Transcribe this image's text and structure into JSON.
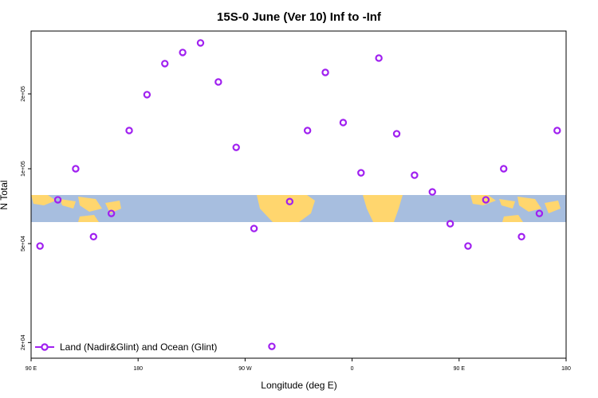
{
  "chart_data": {
    "type": "scatter",
    "title": "15S-0 June (Ver 10)   Inf to -Inf",
    "x_label": "Longitude (deg E)",
    "y_label": "N Total",
    "log_y": true,
    "legend": "bottom-left",
    "xlim": [
      90,
      540
    ],
    "ylim": [
      17300,
      358000
    ],
    "xticks": [
      {
        "value": 90,
        "label": "90 E"
      },
      180,
      {
        "value": 270,
        "label": "90 W"
      },
      {
        "value": 360,
        "label": "0"
      },
      {
        "value": 450,
        "label": "90 E"
      },
      {
        "value": 540,
        "label": "180"
      }
    ],
    "yticks": [
      {
        "value": 20000,
        "label": "2e+04"
      },
      {
        "value": 50000,
        "label": "5e+04"
      },
      {
        "value": 100000,
        "label": "1e+05"
      },
      {
        "value": 200000,
        "label": "2e+05"
      }
    ],
    "x": [
      97.5,
      112.5,
      127.5,
      142.5,
      157.5,
      172.5,
      187.5,
      202.5,
      217.5,
      232.5,
      247.5,
      262.5,
      277.5,
      292.5,
      307.5,
      322.5,
      337.5,
      352.5,
      367.5,
      382.5,
      397.5,
      412.5,
      427.5,
      442.5,
      457.5,
      472.5,
      487.5,
      502.5,
      517.5,
      532.5
    ],
    "series": [
      {
        "name": "Land (Nadir&Glint) and Ocean (Glint)",
        "color": "#a020f0",
        "values": [
          48900,
          75000,
          100000,
          53300,
          66100,
          142500,
          198600,
          264800,
          293600,
          320700,
          223400,
          121900,
          57500,
          19300,
          73800,
          142500,
          244000,
          153400,
          96300,
          278700,
          138300,
          94200,
          80700,
          60100,
          48900,
          75000,
          100000,
          53300,
          66100,
          142500
        ]
      }
    ]
  }
}
